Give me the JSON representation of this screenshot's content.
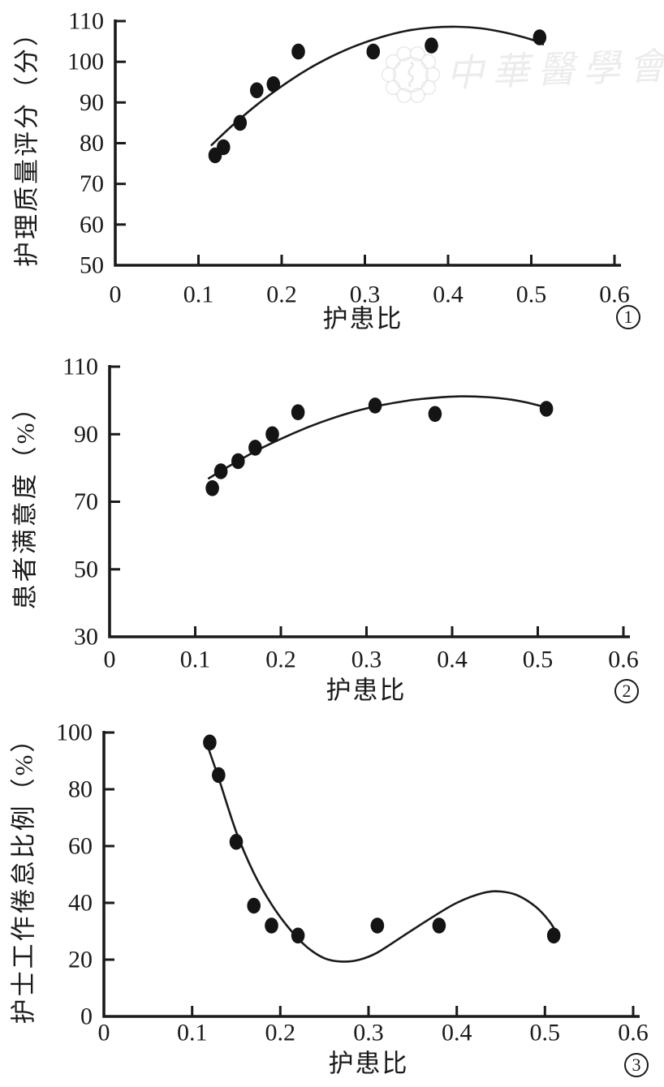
{
  "page": {
    "background": "#ffffff",
    "text_color": "#1a1a1a"
  },
  "watermark": {
    "logo": "chinese-medical-association-emblem",
    "text": "中華醫學會",
    "color": "#e7e7e7",
    "text_color": "#ececec"
  },
  "chart_data": [
    {
      "type": "scatter",
      "figure_number": "1",
      "title": "",
      "xlabel": "护患比",
      "ylabel": "护理质量评分（分）",
      "xlim": [
        0,
        0.6
      ],
      "ylim": [
        50,
        110
      ],
      "xtick_labels": [
        "0",
        "0.1",
        "0.2",
        "0.3",
        "0.4",
        "0.5",
        "0.6"
      ],
      "xticks": [
        0,
        0.1,
        0.2,
        0.3,
        0.4,
        0.5,
        0.6
      ],
      "yticks": [
        50,
        60,
        70,
        80,
        90,
        100,
        110
      ],
      "grid": false,
      "legend": "none",
      "marker": "filled-circle",
      "marker_color": "#141414",
      "x": [
        0.12,
        0.13,
        0.15,
        0.17,
        0.19,
        0.22,
        0.31,
        0.38,
        0.51
      ],
      "y": [
        77,
        79,
        85,
        93,
        94.5,
        102.5,
        102.5,
        104,
        106
      ],
      "fit_curve": {
        "x": [
          0.115,
          0.14,
          0.17,
          0.2,
          0.23,
          0.26,
          0.29,
          0.32,
          0.35,
          0.38,
          0.41,
          0.44,
          0.47,
          0.5,
          0.515
        ],
        "y": [
          79.4,
          84.2,
          89.4,
          94.0,
          98.0,
          101.3,
          104.0,
          106.1,
          107.6,
          108.4,
          108.6,
          108.2,
          107.1,
          105.5,
          104.2
        ]
      }
    },
    {
      "type": "scatter",
      "figure_number": "2",
      "title": "",
      "xlabel": "护患比",
      "ylabel": "患者满意度（%）",
      "xlim": [
        0,
        0.6
      ],
      "ylim": [
        30,
        110
      ],
      "xtick_labels": [
        "0",
        "0.1",
        "0.2",
        "0.3",
        "0.4",
        "0.5",
        "0.6"
      ],
      "xticks": [
        0,
        0.1,
        0.2,
        0.3,
        0.4,
        0.5,
        0.6
      ],
      "yticks": [
        30,
        50,
        70,
        90,
        110
      ],
      "grid": false,
      "legend": "none",
      "marker": "filled-circle",
      "marker_color": "#141414",
      "x": [
        0.12,
        0.13,
        0.15,
        0.17,
        0.19,
        0.22,
        0.31,
        0.38,
        0.51
      ],
      "y": [
        74,
        79,
        82,
        86,
        90,
        96.5,
        98.5,
        96,
        97.5
      ],
      "fit_curve": {
        "x": [
          0.115,
          0.14,
          0.17,
          0.2,
          0.23,
          0.26,
          0.29,
          0.32,
          0.35,
          0.38,
          0.41,
          0.44,
          0.47,
          0.5,
          0.515
        ],
        "y": [
          76.8,
          80.6,
          84.9,
          88.6,
          91.9,
          94.7,
          97.0,
          98.7,
          100.0,
          100.8,
          101.2,
          101.0,
          100.2,
          98.6,
          97.2
        ]
      }
    },
    {
      "type": "scatter",
      "figure_number": "3",
      "title": "",
      "xlabel": "护患比",
      "ylabel": "护士工作倦怠比例（%）",
      "xlim": [
        0,
        0.6
      ],
      "ylim": [
        0,
        100
      ],
      "xtick_labels": [
        "0",
        "0.1",
        "0.2",
        "0.3",
        "0.4",
        "0.5",
        "0.6"
      ],
      "xticks": [
        0,
        0.1,
        0.2,
        0.3,
        0.4,
        0.5,
        0.6
      ],
      "yticks": [
        0,
        20,
        40,
        60,
        80,
        100
      ],
      "grid": false,
      "legend": "none",
      "marker": "filled-circle",
      "marker_color": "#141414",
      "x": [
        0.12,
        0.13,
        0.15,
        0.17,
        0.19,
        0.22,
        0.31,
        0.38,
        0.51
      ],
      "y": [
        96.5,
        85,
        61.5,
        39,
        32,
        28.5,
        32,
        32,
        28.5
      ],
      "fit_curve": {
        "x": [
          0.115,
          0.13,
          0.15,
          0.17,
          0.19,
          0.21,
          0.23,
          0.25,
          0.27,
          0.29,
          0.31,
          0.34,
          0.37,
          0.4,
          0.43,
          0.45,
          0.47,
          0.49,
          0.505,
          0.515
        ],
        "y": [
          97.5,
          84,
          65,
          50.5,
          39.5,
          31,
          24.5,
          20.5,
          19.3,
          20,
          22.5,
          28.5,
          34.5,
          40,
          43.5,
          44,
          42.5,
          38.5,
          33.5,
          28.5
        ]
      }
    }
  ]
}
